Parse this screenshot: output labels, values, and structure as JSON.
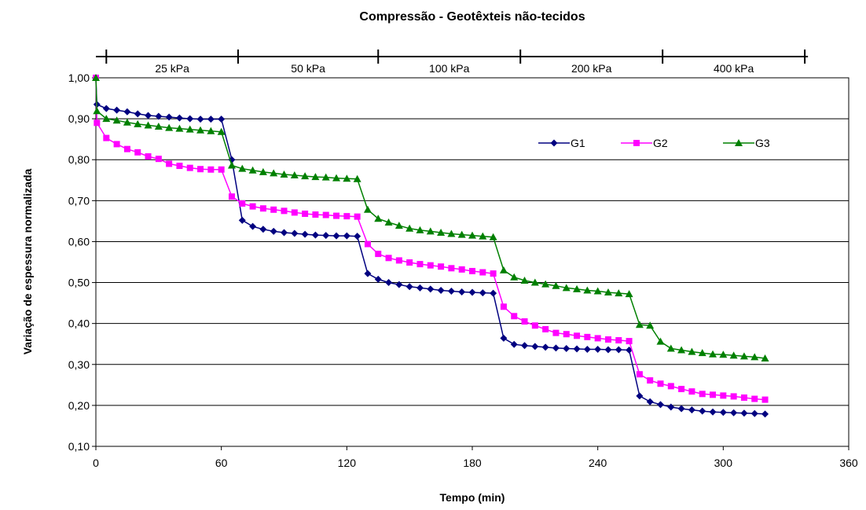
{
  "chart_data": {
    "type": "line",
    "title": "Compressão - Geotêxteis não-tecidos",
    "xlabel": "Tempo (min)",
    "ylabel": "Variação de espessura normalizada",
    "xlim": [
      0,
      360
    ],
    "ylim": [
      0.1,
      1.0
    ],
    "xticks": [
      "0",
      "60",
      "120",
      "180",
      "240",
      "300",
      "360"
    ],
    "yticks": [
      "0,10",
      "0,20",
      "0,30",
      "0,40",
      "0,50",
      "0,60",
      "0,70",
      "0,80",
      "0,90",
      "1,00"
    ],
    "grid": true,
    "legend_position": "top-right",
    "stages": [
      {
        "label": "25 kPa",
        "start": 5,
        "end": 68
      },
      {
        "label": "50 kPa",
        "start": 68,
        "end": 135
      },
      {
        "label": "100 kPa",
        "start": 135,
        "end": 203
      },
      {
        "label": "200 kPa",
        "start": 203,
        "end": 271
      },
      {
        "label": "400 kPa",
        "start": 271,
        "end": 339
      }
    ],
    "series": [
      {
        "name": "G1",
        "color": "#000080",
        "marker": "diamond",
        "x": [
          0,
          0.5,
          5,
          10,
          15,
          20,
          25,
          30,
          35,
          40,
          45,
          50,
          55,
          60,
          65,
          70,
          75,
          80,
          85,
          90,
          95,
          100,
          105,
          110,
          115,
          120,
          125,
          130,
          135,
          140,
          145,
          150,
          155,
          160,
          165,
          170,
          175,
          180,
          185,
          190,
          195,
          200,
          205,
          210,
          215,
          220,
          225,
          230,
          235,
          240,
          245,
          250,
          255,
          260,
          265,
          270,
          275,
          280,
          285,
          290,
          295,
          300,
          305,
          310,
          315,
          320
        ],
        "y": [
          1.0,
          0.935,
          0.925,
          0.921,
          0.917,
          0.912,
          0.908,
          0.906,
          0.904,
          0.902,
          0.9,
          0.899,
          0.899,
          0.899,
          0.8,
          0.652,
          0.637,
          0.63,
          0.625,
          0.622,
          0.62,
          0.618,
          0.616,
          0.615,
          0.614,
          0.614,
          0.613,
          0.522,
          0.508,
          0.5,
          0.495,
          0.49,
          0.487,
          0.484,
          0.481,
          0.479,
          0.477,
          0.476,
          0.475,
          0.474,
          0.364,
          0.349,
          0.346,
          0.344,
          0.342,
          0.34,
          0.339,
          0.338,
          0.337,
          0.337,
          0.336,
          0.336,
          0.335,
          0.223,
          0.209,
          0.202,
          0.196,
          0.192,
          0.189,
          0.186,
          0.184,
          0.183,
          0.182,
          0.181,
          0.18,
          0.179
        ]
      },
      {
        "name": "G2",
        "color": "#FF00FF",
        "marker": "square",
        "x": [
          0,
          0.5,
          5,
          10,
          15,
          20,
          25,
          30,
          35,
          40,
          45,
          50,
          55,
          60,
          65,
          70,
          75,
          80,
          85,
          90,
          95,
          100,
          105,
          110,
          115,
          120,
          125,
          130,
          135,
          140,
          145,
          150,
          155,
          160,
          165,
          170,
          175,
          180,
          185,
          190,
          195,
          200,
          205,
          210,
          215,
          220,
          225,
          230,
          235,
          240,
          245,
          250,
          255,
          260,
          265,
          270,
          275,
          280,
          285,
          290,
          295,
          300,
          305,
          310,
          315,
          320
        ],
        "y": [
          1.0,
          0.89,
          0.853,
          0.838,
          0.826,
          0.818,
          0.808,
          0.802,
          0.79,
          0.785,
          0.78,
          0.777,
          0.776,
          0.776,
          0.71,
          0.693,
          0.686,
          0.681,
          0.678,
          0.675,
          0.671,
          0.668,
          0.666,
          0.665,
          0.663,
          0.662,
          0.661,
          0.594,
          0.57,
          0.56,
          0.554,
          0.549,
          0.545,
          0.542,
          0.539,
          0.535,
          0.532,
          0.528,
          0.525,
          0.522,
          0.441,
          0.418,
          0.405,
          0.395,
          0.386,
          0.377,
          0.374,
          0.37,
          0.367,
          0.364,
          0.361,
          0.359,
          0.357,
          0.276,
          0.261,
          0.253,
          0.247,
          0.24,
          0.234,
          0.228,
          0.226,
          0.224,
          0.222,
          0.219,
          0.216,
          0.214
        ]
      },
      {
        "name": "G3",
        "color": "#008000",
        "marker": "triangle",
        "x": [
          0,
          0.5,
          5,
          10,
          15,
          20,
          25,
          30,
          35,
          40,
          45,
          50,
          55,
          60,
          65,
          70,
          75,
          80,
          85,
          90,
          95,
          100,
          105,
          110,
          115,
          120,
          125,
          130,
          135,
          140,
          145,
          150,
          155,
          160,
          165,
          170,
          175,
          180,
          185,
          190,
          195,
          200,
          205,
          210,
          215,
          220,
          225,
          230,
          235,
          240,
          245,
          250,
          255,
          260,
          265,
          270,
          275,
          280,
          285,
          290,
          295,
          300,
          305,
          310,
          315,
          320
        ],
        "y": [
          1.0,
          0.919,
          0.9,
          0.896,
          0.891,
          0.887,
          0.884,
          0.881,
          0.878,
          0.876,
          0.874,
          0.872,
          0.87,
          0.868,
          0.786,
          0.778,
          0.774,
          0.77,
          0.767,
          0.764,
          0.762,
          0.76,
          0.758,
          0.757,
          0.755,
          0.754,
          0.753,
          0.678,
          0.656,
          0.647,
          0.639,
          0.632,
          0.628,
          0.625,
          0.622,
          0.619,
          0.617,
          0.615,
          0.613,
          0.611,
          0.53,
          0.513,
          0.505,
          0.5,
          0.496,
          0.492,
          0.487,
          0.484,
          0.481,
          0.479,
          0.476,
          0.474,
          0.472,
          0.397,
          0.395,
          0.356,
          0.339,
          0.335,
          0.331,
          0.328,
          0.325,
          0.324,
          0.322,
          0.32,
          0.318,
          0.315
        ]
      }
    ]
  }
}
